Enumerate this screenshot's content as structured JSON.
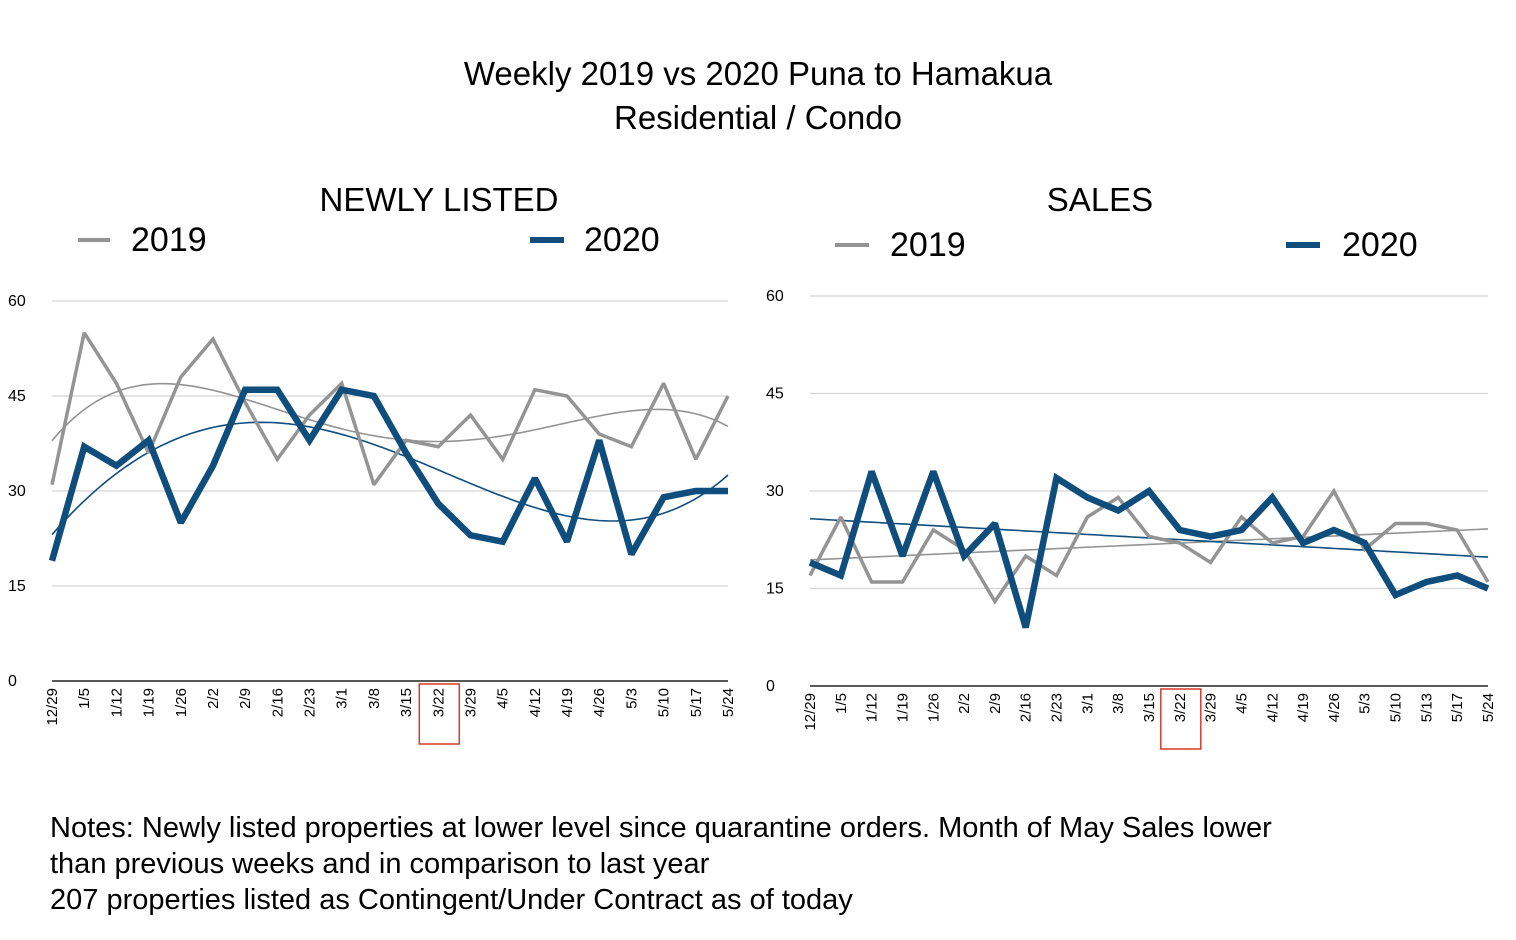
{
  "title": {
    "line1": "Weekly 2019 vs 2020 Puna to Hamakua",
    "line2": "Residential / Condo"
  },
  "colors": {
    "series_2019": "#949494",
    "series_2020": "#0f4d7d",
    "grid": "#d4d4d4",
    "highlight": "#d63a2a"
  },
  "notes": {
    "line1": "Notes: Newly listed properties at lower level since quarantine orders. Month of May Sales lower",
    "line2": "than previous weeks and in comparison to last year",
    "line3": "207 properties listed as Contingent/Under Contract as of today"
  },
  "chart_data": [
    {
      "type": "line",
      "title": "NEWLY LISTED",
      "categories": [
        "12/29",
        "1/5",
        "1/12",
        "1/19",
        "1/26",
        "2/2",
        "2/9",
        "2/16",
        "2/23",
        "3/1",
        "3/8",
        "3/15",
        "3/22",
        "3/29",
        "4/5",
        "4/12",
        "4/19",
        "4/26",
        "5/3",
        "5/10",
        "5/17",
        "5/24"
      ],
      "series": [
        {
          "name": "2019",
          "values": [
            31,
            55,
            47,
            36,
            48,
            54,
            44,
            35,
            42,
            47,
            31,
            38,
            37,
            42,
            35,
            46,
            45,
            39,
            37,
            47,
            35,
            45
          ],
          "trend": "polynomial"
        },
        {
          "name": "2020",
          "values": [
            19,
            37,
            34,
            38,
            25,
            34,
            46,
            46,
            38,
            46,
            45,
            36,
            28,
            23,
            22,
            32,
            22,
            38,
            20,
            29,
            30,
            30
          ],
          "trend": "polynomial"
        }
      ],
      "ylim": [
        0,
        60
      ],
      "yticks": [
        0,
        15,
        30,
        45,
        60
      ],
      "highlight_category": "3/22",
      "grid": true,
      "legend": "top"
    },
    {
      "type": "line",
      "title": "SALES",
      "categories": [
        "12/29",
        "1/5",
        "1/12",
        "1/19",
        "1/26",
        "2/2",
        "2/9",
        "2/16",
        "2/23",
        "3/1",
        "3/8",
        "3/15",
        "3/22",
        "3/29",
        "4/5",
        "4/12",
        "4/19",
        "4/26",
        "5/3",
        "5/10",
        "5/13",
        "5/17",
        "5/24"
      ],
      "series": [
        {
          "name": "2019",
          "values": [
            17,
            26,
            16,
            16,
            24,
            21,
            13,
            20,
            17,
            26,
            29,
            23,
            22,
            19,
            26,
            22,
            23,
            30,
            21,
            25,
            25,
            24,
            16
          ],
          "trend": "linear"
        },
        {
          "name": "2020",
          "values": [
            19,
            17,
            33,
            20,
            33,
            20,
            25,
            9,
            32,
            29,
            27,
            30,
            24,
            23,
            24,
            29,
            22,
            24,
            22,
            14,
            16,
            17,
            15
          ],
          "trend": "linear"
        }
      ],
      "ylim": [
        0,
        60
      ],
      "yticks": [
        0,
        15,
        30,
        45,
        60
      ],
      "highlight_category": "3/22",
      "grid": true,
      "legend": "top"
    }
  ]
}
